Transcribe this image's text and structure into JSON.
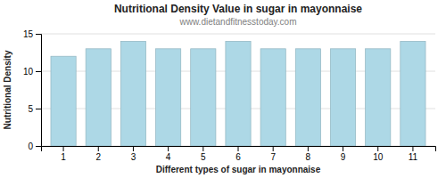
{
  "chart_data": {
    "type": "bar",
    "title": "Nutritional Density Value in sugar in mayonnaise",
    "subtitle": "www.dietandfitnesstoday.com",
    "xlabel": "Different types of sugar in mayonnaise",
    "ylabel": "Nutritional Density",
    "categories": [
      1,
      2,
      3,
      4,
      5,
      6,
      7,
      8,
      9,
      10,
      11
    ],
    "values": [
      12,
      13,
      14,
      13,
      13,
      14,
      13,
      13,
      13,
      13,
      14
    ],
    "color": "#add8e6",
    "ylim": [
      0,
      15
    ],
    "yticks": [
      0,
      5,
      10,
      15
    ],
    "grid": true
  }
}
